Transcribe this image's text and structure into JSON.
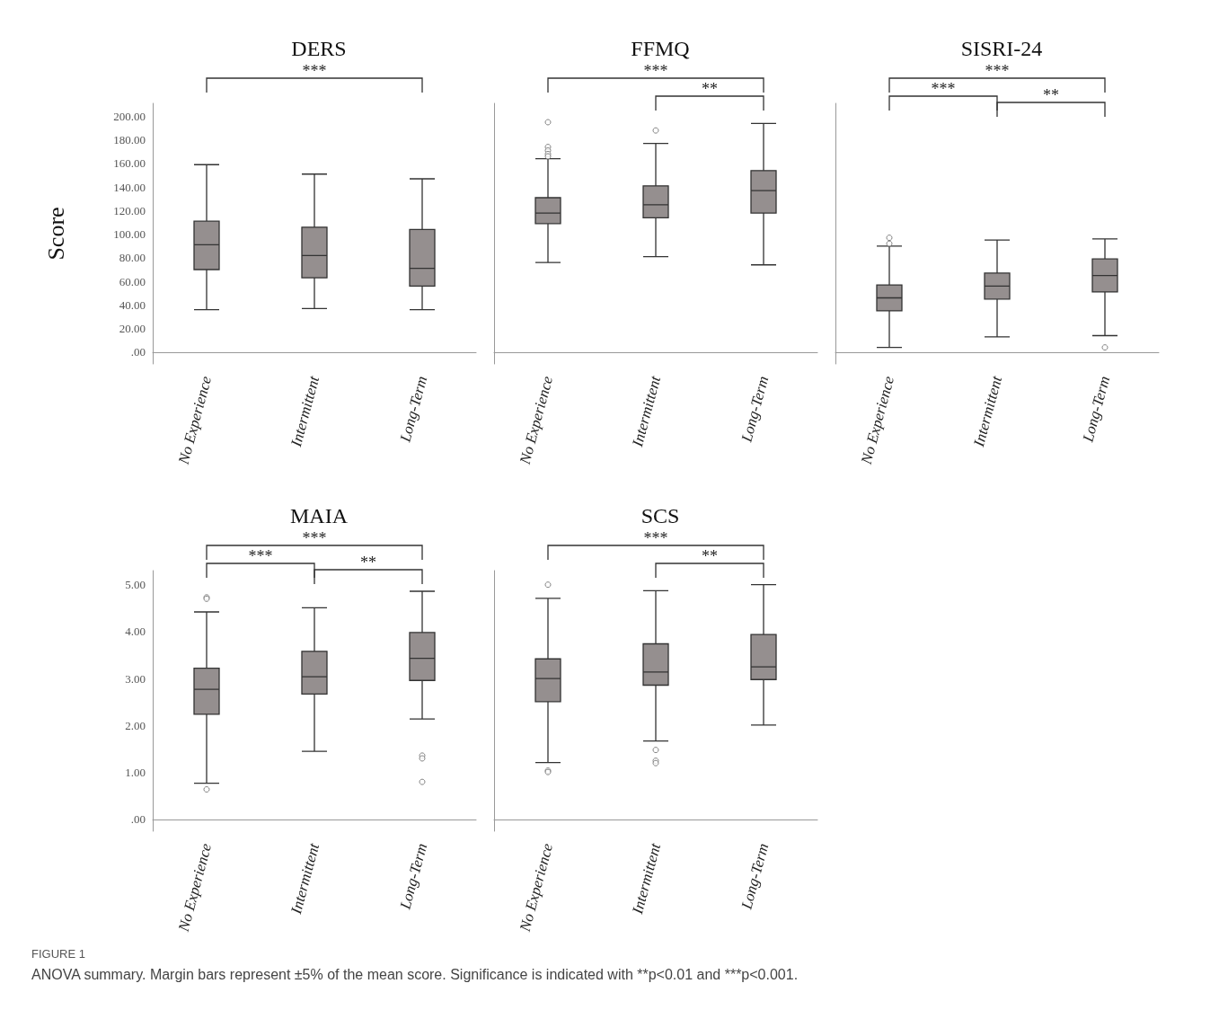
{
  "chart_data": [
    {
      "type": "box",
      "title": "DERS",
      "ylabel": "Score",
      "categories": [
        "No Experience",
        "Intermittent",
        "Long-Term"
      ],
      "color": "#958f8f",
      "marker": "circle",
      "grid": false,
      "ylim": [
        -10,
        211
      ],
      "yticks": [
        {
          "value": 0,
          "label": ".00"
        },
        {
          "value": 20,
          "label": "20.00"
        },
        {
          "value": 40,
          "label": "40.00"
        },
        {
          "value": 60,
          "label": "60.00"
        },
        {
          "value": 80,
          "label": "80.00"
        },
        {
          "value": 100,
          "label": "100.00"
        },
        {
          "value": 120,
          "label": "120.00"
        },
        {
          "value": 140,
          "label": "140.00"
        },
        {
          "value": 160,
          "label": "160.00"
        },
        {
          "value": 180,
          "label": "180.00"
        },
        {
          "value": 200,
          "label": "200.00"
        }
      ],
      "boxes": [
        {
          "low": 36,
          "q1": 70,
          "median": 91,
          "q3": 111,
          "high": 159
        },
        {
          "low": 37,
          "q1": 63,
          "median": 82,
          "q3": 106,
          "high": 151
        },
        {
          "low": 36,
          "q1": 56,
          "median": 71,
          "q3": 104,
          "high": 147
        }
      ],
      "annotations": [
        "***"
      ]
    },
    {
      "type": "box",
      "title": "FFMQ",
      "categories": [
        "No Experience",
        "Intermittent",
        "Long-Term"
      ],
      "color": "#958f8f",
      "marker": "circle",
      "grid": false,
      "tick_labels": "x",
      "ylim": [
        -10,
        211
      ],
      "boxes": [
        {
          "low": 76,
          "q1": 109,
          "median": 118,
          "q3": 131,
          "high": 164,
          "outliers": [
            195,
            174,
            171,
            168,
            166
          ]
        },
        {
          "low": 81,
          "q1": 114,
          "median": 125,
          "q3": 141,
          "high": 177,
          "outliers": [
            188
          ]
        },
        {
          "low": 74,
          "q1": 118,
          "median": 137,
          "q3": 154,
          "high": 194
        }
      ],
      "annotations": [
        "***",
        "**"
      ]
    },
    {
      "type": "box",
      "title": "SISRI-24",
      "categories": [
        "No Experience",
        "Intermittent",
        "Long-Term"
      ],
      "color": "#958f8f",
      "marker": "circle",
      "grid": false,
      "tick_labels": "x",
      "ylim": [
        -10,
        211
      ],
      "boxes": [
        {
          "low": 4,
          "q1": 35,
          "median": 46,
          "q3": 57,
          "high": 90,
          "outliers": [
            97,
            92
          ]
        },
        {
          "low": 13,
          "q1": 45,
          "median": 56,
          "q3": 67,
          "high": 95
        },
        {
          "low": 14,
          "q1": 51,
          "median": 65,
          "q3": 79,
          "high": 96,
          "outliers": [
            4
          ]
        }
      ],
      "annotations": [
        "***",
        "***",
        "**"
      ]
    },
    {
      "type": "box",
      "title": "MAIA",
      "categories": [
        "No Experience",
        "Intermittent",
        "Long-Term"
      ],
      "color": "#958f8f",
      "marker": "circle",
      "grid": false,
      "ylim": [
        -0.25,
        5.3
      ],
      "yticks": [
        {
          "value": 0,
          "label": ".00"
        },
        {
          "value": 1,
          "label": "1.00"
        },
        {
          "value": 2,
          "label": "2.00"
        },
        {
          "value": 3,
          "label": "3.00"
        },
        {
          "value": 4,
          "label": "4.00"
        },
        {
          "value": 5,
          "label": "5.00"
        }
      ],
      "boxes": [
        {
          "low": 0.77,
          "q1": 2.24,
          "median": 2.77,
          "q3": 3.22,
          "high": 4.42,
          "outliers": [
            4.73,
            4.7,
            0.64
          ]
        },
        {
          "low": 1.45,
          "q1": 2.67,
          "median": 3.04,
          "q3": 3.58,
          "high": 4.51
        },
        {
          "low": 2.14,
          "q1": 2.96,
          "median": 3.43,
          "q3": 3.98,
          "high": 4.86,
          "outliers": [
            1.36,
            1.3,
            0.8
          ]
        }
      ],
      "annotations": [
        "***",
        "***",
        "**"
      ]
    },
    {
      "type": "box",
      "title": "SCS",
      "categories": [
        "No Experience",
        "Intermittent",
        "Long-Term"
      ],
      "color": "#958f8f",
      "marker": "circle",
      "grid": false,
      "tick_labels": "x",
      "ylim": [
        -0.25,
        5.3
      ],
      "boxes": [
        {
          "low": 1.21,
          "q1": 2.51,
          "median": 3.0,
          "q3": 3.42,
          "high": 4.71,
          "outliers": [
            5.0,
            1.04,
            1.01
          ]
        },
        {
          "low": 1.67,
          "q1": 2.86,
          "median": 3.14,
          "q3": 3.74,
          "high": 4.87,
          "outliers": [
            1.48,
            1.25,
            1.2
          ]
        },
        {
          "low": 2.01,
          "q1": 2.98,
          "median": 3.25,
          "q3": 3.94,
          "high": 5.0
        }
      ],
      "annotations": [
        "***",
        "**"
      ]
    },
    {
      "type": "other",
      "title": "FIGURE 1",
      "annotations": [
        "ANOVA summary. Margin bars represent ±5% of the mean score. Significance is indicated with **p<0.01 and ***p<0.001."
      ]
    }
  ]
}
